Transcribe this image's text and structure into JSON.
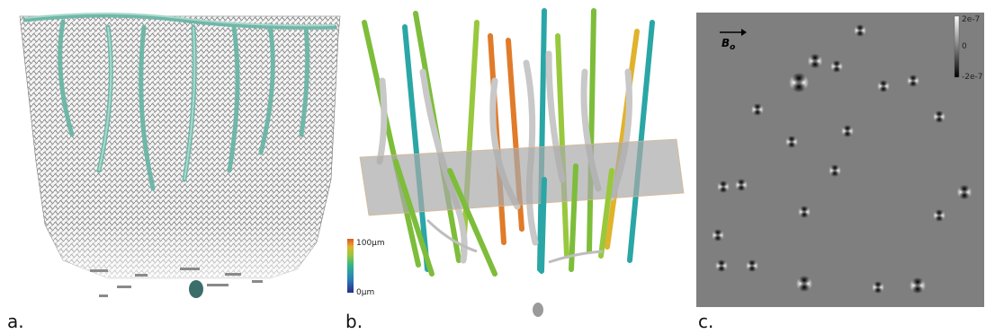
{
  "panels": {
    "a": {
      "label": "a."
    },
    "b": {
      "label": "b.",
      "colorbar": {
        "max_label": "100µm",
        "min_label": "0µm",
        "stops": [
          "#2b2c8c",
          "#2a7fb8",
          "#2fb58a",
          "#98c83d",
          "#e0b32b",
          "#e0552a"
        ]
      },
      "colors": {
        "green": "#7dbd3a",
        "teal": "#2aa6a6",
        "orange": "#e07b2a",
        "gray": "#c8c8c8"
      }
    },
    "c": {
      "label": "c.",
      "field_label": "B",
      "field_subscript": "o",
      "colorbar": {
        "ticks": [
          "2e-7",
          "0",
          "-2e-7"
        ]
      }
    }
  }
}
